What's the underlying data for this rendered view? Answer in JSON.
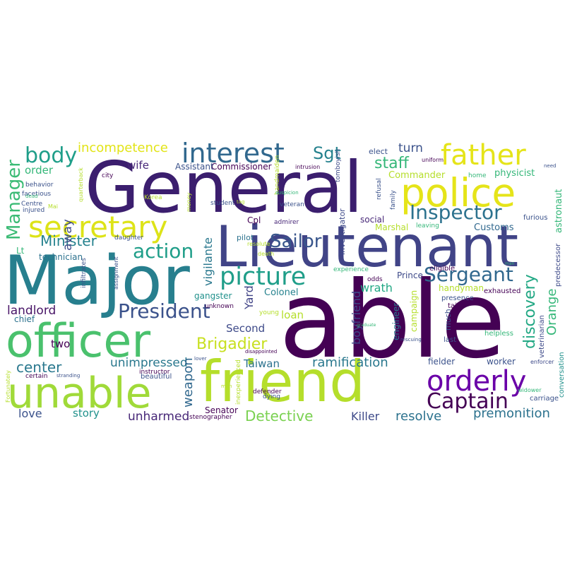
{
  "words": [
    {
      "text": "able",
      "color": "#440154"
    },
    {
      "text": "General",
      "color": "#3b1e6e"
    },
    {
      "text": "Major",
      "color": "#277f8e"
    },
    {
      "text": "Lieutenant",
      "color": "#414487"
    },
    {
      "text": "friend",
      "color": "#b5de2b"
    },
    {
      "text": "unable",
      "color": "#a0da39"
    },
    {
      "text": "officer",
      "color": "#4ac16d"
    },
    {
      "text": "police",
      "color": "#e5e419"
    },
    {
      "text": "father",
      "color": "#e5e419"
    },
    {
      "text": "secretary",
      "color": "#dde318"
    },
    {
      "text": "interest",
      "color": "#31688e"
    },
    {
      "text": "orderly",
      "color": "#6a00a8"
    },
    {
      "text": "picture",
      "color": "#1f9e89"
    },
    {
      "text": "Inspector",
      "color": "#2c728e"
    },
    {
      "text": "Sergeant",
      "color": "#31688e"
    },
    {
      "text": "President",
      "color": "#3b528b"
    },
    {
      "text": "Captain",
      "color": "#440154"
    },
    {
      "text": "action",
      "color": "#1f9e89"
    },
    {
      "text": "body",
      "color": "#1f9e89"
    },
    {
      "text": "Manager",
      "color": "#3bbb75"
    },
    {
      "text": "Sailor",
      "color": "#39568c"
    },
    {
      "text": "Sgt",
      "color": "#26828e"
    },
    {
      "text": "staff",
      "color": "#35b779"
    },
    {
      "text": "incompetence",
      "color": "#e2e418"
    },
    {
      "text": "Brigadier",
      "color": "#c8e020"
    },
    {
      "text": "Detective",
      "color": "#7ad151"
    },
    {
      "text": "Minister",
      "color": "#26828e"
    },
    {
      "text": "landlord",
      "color": "#481467"
    },
    {
      "text": "center",
      "color": "#2a788e"
    },
    {
      "text": "discovery",
      "color": "#22a884"
    },
    {
      "text": "ramification",
      "color": "#2a788e"
    },
    {
      "text": "unimpressed",
      "color": "#2a788e"
    },
    {
      "text": "vigilante",
      "color": "#2a788e"
    },
    {
      "text": "boyfriend",
      "color": "#3e4a89"
    },
    {
      "text": "premonition",
      "color": "#2c728e"
    },
    {
      "text": "resolve",
      "color": "#2c728e"
    },
    {
      "text": "Killer",
      "color": "#3e4a89"
    },
    {
      "text": "weapon",
      "color": "#31688e"
    },
    {
      "text": "unharmed",
      "color": "#482878"
    },
    {
      "text": "Orange",
      "color": "#35b779"
    },
    {
      "text": "wrath",
      "color": "#22a884"
    },
    {
      "text": "Taiwan",
      "color": "#2c728e"
    },
    {
      "text": "away",
      "color": "#3e4a89"
    },
    {
      "text": "Yard",
      "color": "#414487"
    },
    {
      "text": "turn",
      "color": "#3b528b"
    },
    {
      "text": "wife",
      "color": "#482878"
    },
    {
      "text": "order",
      "color": "#35b779"
    },
    {
      "text": "two",
      "color": "#440154"
    },
    {
      "text": "love",
      "color": "#3b528b"
    },
    {
      "text": "story",
      "color": "#21918c"
    },
    {
      "text": "Senator",
      "color": "#440154"
    },
    {
      "text": "Second",
      "color": "#3e4a89"
    },
    {
      "text": "loan",
      "color": "#b5de2b"
    },
    {
      "text": "Colonel",
      "color": "#26828e"
    },
    {
      "text": "gangster",
      "color": "#21918c"
    },
    {
      "text": "Commissioner",
      "color": "#440154"
    },
    {
      "text": "Assistant",
      "color": "#3b528b"
    },
    {
      "text": "Commander",
      "color": "#b5de2b"
    },
    {
      "text": "physicist",
      "color": "#35b779"
    },
    {
      "text": "astronaut",
      "color": "#35b779"
    },
    {
      "text": "Customs",
      "color": "#31688e"
    },
    {
      "text": "worker",
      "color": "#3b528b"
    },
    {
      "text": "fielder",
      "color": "#3b528b"
    },
    {
      "text": "Marshal",
      "color": "#b5de2b"
    },
    {
      "text": "handyman",
      "color": "#b5de2b"
    },
    {
      "text": "Prince",
      "color": "#3e4a89"
    },
    {
      "text": "social",
      "color": "#482878"
    },
    {
      "text": "investigator",
      "color": "#3e4a89"
    },
    {
      "text": "engineer",
      "color": "#2a788e"
    },
    {
      "text": "campaign",
      "color": "#b5de2b"
    },
    {
      "text": "technician",
      "color": "#2c728e"
    },
    {
      "text": "chief",
      "color": "#2c728e"
    },
    {
      "text": "Lt",
      "color": "#35b779"
    },
    {
      "text": "pilot",
      "color": "#2c728e"
    },
    {
      "text": "Cpl",
      "color": "#440154"
    },
    {
      "text": "elect",
      "color": "#3b528b"
    },
    {
      "text": "conversation",
      "color": "#21918c"
    },
    {
      "text": "veterinarian",
      "color": "#3e4a89"
    },
    {
      "text": "predecessor",
      "color": "#3e4a89"
    },
    {
      "text": "furious",
      "color": "#3b528b"
    },
    {
      "text": "exhausted",
      "color": "#440154"
    },
    {
      "text": "presence",
      "color": "#3b528b"
    },
    {
      "text": "tail",
      "color": "#440154"
    },
    {
      "text": "much",
      "color": "#3b528b"
    },
    {
      "text": "last",
      "color": "#3b528b"
    },
    {
      "text": "helpless",
      "color": "#35b779"
    },
    {
      "text": "carriage",
      "color": "#3b528b"
    },
    {
      "text": "widower",
      "color": "#35b779"
    },
    {
      "text": "enforcer",
      "color": "#3e4a89"
    },
    {
      "text": "eligible",
      "color": "#440154"
    },
    {
      "text": "leaving",
      "color": "#35b779"
    },
    {
      "text": "death",
      "color": "#b5de2b"
    },
    {
      "text": "experience",
      "color": "#35b779"
    },
    {
      "text": "odds",
      "color": "#440154"
    },
    {
      "text": "resolute",
      "color": "#b5de2b"
    },
    {
      "text": "admirer",
      "color": "#482878"
    },
    {
      "text": "veteran",
      "color": "#3b528b"
    },
    {
      "text": "student",
      "color": "#3b528b"
    },
    {
      "text": "unknown",
      "color": "#440154"
    },
    {
      "text": "handmaiden",
      "color": "#b5de2b"
    },
    {
      "text": "tomboyish",
      "color": "#3e4a89"
    },
    {
      "text": "refusal",
      "color": "#3b528b"
    },
    {
      "text": "family",
      "color": "#3b528b"
    },
    {
      "text": "home",
      "color": "#35b779"
    },
    {
      "text": "uniform",
      "color": "#440154"
    },
    {
      "text": "need",
      "color": "#3b528b"
    },
    {
      "text": "intrusion",
      "color": "#440154"
    },
    {
      "text": "suspicion",
      "color": "#35b779"
    },
    {
      "text": "Korea",
      "color": "#b5de2b"
    },
    {
      "text": "money",
      "color": "#b5de2b"
    },
    {
      "text": "tag",
      "color": "#b5de2b"
    },
    {
      "text": "city",
      "color": "#440154"
    },
    {
      "text": "quarterback",
      "color": "#b5de2b"
    },
    {
      "text": "facetious",
      "color": "#3b528b"
    },
    {
      "text": "behavior",
      "color": "#3b528b"
    },
    {
      "text": "Centre",
      "color": "#3b528b"
    },
    {
      "text": "Mai",
      "color": "#b5de2b"
    },
    {
      "text": "injured",
      "color": "#3b528b"
    },
    {
      "text": "dead",
      "color": "#35b779"
    },
    {
      "text": "infiltrates",
      "color": "#3b528b"
    },
    {
      "text": "daughter",
      "color": "#3b528b"
    },
    {
      "text": "assignment",
      "color": "#3b528b"
    },
    {
      "text": "young",
      "color": "#b5de2b"
    },
    {
      "text": "graduate",
      "color": "#35b779"
    },
    {
      "text": "rescuing",
      "color": "#3b528b"
    },
    {
      "text": "disappointed",
      "color": "#440154"
    },
    {
      "text": "lover",
      "color": "#3b528b"
    },
    {
      "text": "instructor",
      "color": "#440154"
    },
    {
      "text": "beautiful",
      "color": "#3b528b"
    },
    {
      "text": "certain",
      "color": "#440154"
    },
    {
      "text": "stranding",
      "color": "#3b528b"
    },
    {
      "text": "Fortunately",
      "color": "#b5de2b"
    },
    {
      "text": "inexperienced",
      "color": "#b5de2b"
    },
    {
      "text": "defender",
      "color": "#440154"
    },
    {
      "text": "dying",
      "color": "#3b528b"
    },
    {
      "text": "stenographer",
      "color": "#440154"
    },
    {
      "text": "men",
      "color": "#b5de2b"
    },
    {
      "text": "man",
      "color": "#35b779"
    }
  ]
}
